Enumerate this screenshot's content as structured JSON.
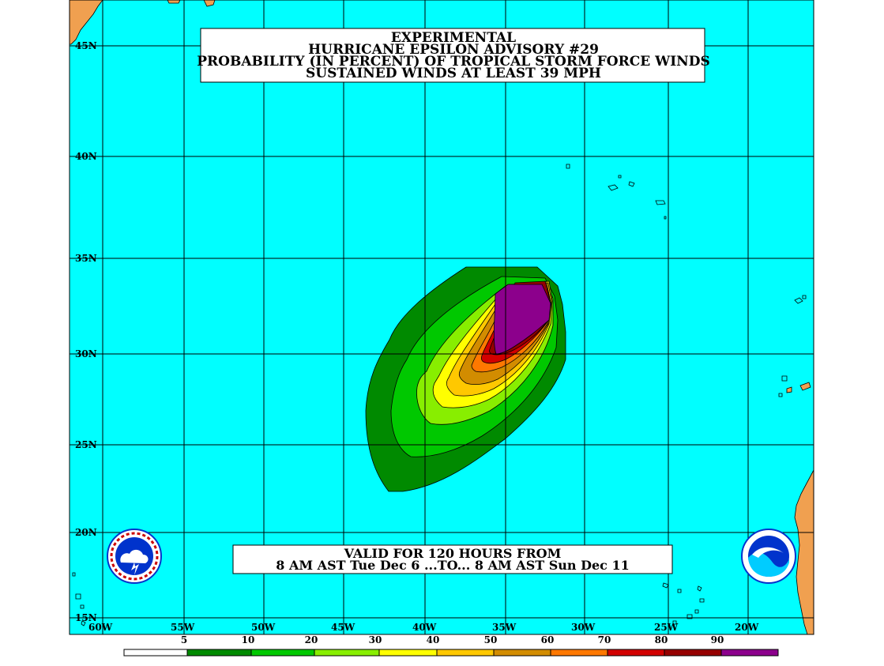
{
  "title": {
    "line1": "EXPERIMENTAL",
    "line2": "HURRICANE EPSILON ADVISORY #29",
    "line3": "PROBABILITY (IN PERCENT) OF TROPICAL STORM FORCE WINDS",
    "line4": "SUSTAINED WINDS AT LEAST 39 MPH"
  },
  "valid": {
    "line1": "VALID FOR 120 HOURS FROM",
    "line2": "8 AM AST Tue Dec 6 ...TO... 8 AM AST Sun Dec 11"
  },
  "latitude_labels": [
    "45N",
    "40N",
    "35N",
    "30N",
    "25N",
    "20N",
    "15N"
  ],
  "longitude_labels": [
    "60W",
    "55W",
    "50W",
    "45W",
    "40W",
    "35W",
    "30W",
    "25W",
    "20W"
  ],
  "legend": {
    "labels": [
      "5",
      "10",
      "20",
      "30",
      "40",
      "50",
      "60",
      "70",
      "80",
      "90"
    ],
    "colors": [
      "#ffffff",
      "#008a00",
      "#00c800",
      "#88ee00",
      "#ffff00",
      "#ffc800",
      "#d28c00",
      "#ff7800",
      "#d20000",
      "#960000",
      "#8c008c"
    ]
  },
  "colors": {
    "ocean": "#00ffff",
    "land": "#f0a050",
    "grid": "#000000",
    "contour_5": "#008a00",
    "contour_10": "#00c800",
    "contour_20": "#88ee00",
    "contour_30": "#ffff00",
    "contour_40": "#ffc800",
    "contour_50": "#d28c00",
    "contour_60": "#ff7800",
    "contour_70": "#d20000",
    "contour_80": "#960000",
    "contour_90": "#8c008c"
  },
  "logos": {
    "left": "national-weather-service-logo",
    "right": "noaa-logo"
  }
}
